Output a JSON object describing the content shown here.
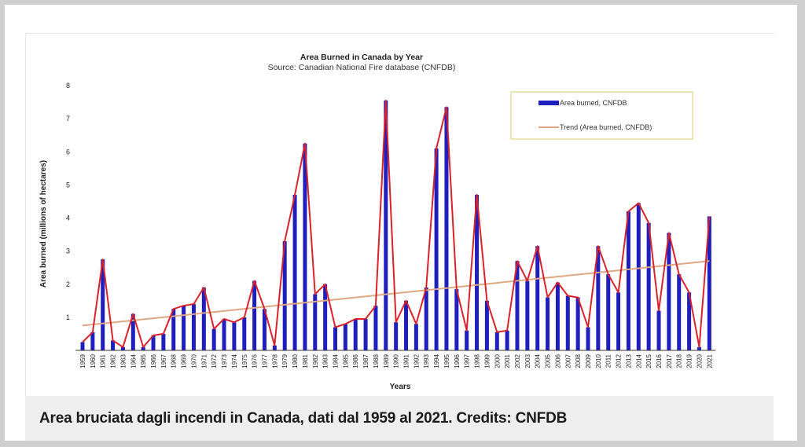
{
  "caption": "Area bruciata dagli incendi in Canada, dati dal 1959 al 2021. Credits: CNFDB",
  "chart_data": {
    "type": "bar",
    "title": "Area Burned in Canada by Year",
    "subtitle": "Source: Canadian National Fire database (CNFDB)",
    "xlabel": "Years",
    "ylabel": "Area burned (millions of hectares)",
    "ylim": [
      0,
      8
    ],
    "yticks": [
      1,
      2,
      3,
      4,
      5,
      6,
      7,
      8
    ],
    "grid": false,
    "legend_position": "top-right",
    "categories": [
      "1959",
      "1960",
      "1961",
      "1962",
      "1963",
      "1964",
      "1965",
      "1966",
      "1967",
      "1968",
      "1969",
      "1970",
      "1971",
      "1972",
      "1973",
      "1974",
      "1975",
      "1976",
      "1977",
      "1978",
      "1979",
      "1980",
      "1981",
      "1982",
      "1983",
      "1984",
      "1985",
      "1986",
      "1987",
      "1988",
      "1989",
      "1990",
      "1991",
      "1992",
      "1993",
      "1994",
      "1995",
      "1996",
      "1997",
      "1998",
      "1999",
      "2000",
      "2001",
      "2002",
      "2003",
      "2004",
      "2005",
      "2006",
      "2007",
      "2008",
      "2009",
      "2010",
      "2011",
      "2012",
      "2013",
      "2014",
      "2015",
      "2016",
      "2017",
      "2018",
      "2019",
      "2020",
      "2021"
    ],
    "series": [
      {
        "name": "Area burned, CNFDB",
        "type": "bar",
        "color": "#1f1fbf",
        "values": [
          0.25,
          0.55,
          2.75,
          0.3,
          0.1,
          1.1,
          0.1,
          0.45,
          0.5,
          1.25,
          1.35,
          1.4,
          1.9,
          0.65,
          0.95,
          0.85,
          1.0,
          2.1,
          1.25,
          0.15,
          3.3,
          4.7,
          6.25,
          1.7,
          2.0,
          0.7,
          0.8,
          0.95,
          0.95,
          1.35,
          7.55,
          0.85,
          1.5,
          0.8,
          1.9,
          6.1,
          7.35,
          1.85,
          0.6,
          4.7,
          1.5,
          0.55,
          0.6,
          2.7,
          2.1,
          3.15,
          1.6,
          2.05,
          1.65,
          1.6,
          0.7,
          3.15,
          2.3,
          1.75,
          4.2,
          4.45,
          3.85,
          1.2,
          3.55,
          2.3,
          1.75,
          0.1,
          4.05
        ]
      },
      {
        "name": "",
        "type": "line",
        "color": "#d9232b",
        "values": [
          0.25,
          0.55,
          2.75,
          0.3,
          0.1,
          1.1,
          0.1,
          0.45,
          0.5,
          1.25,
          1.35,
          1.4,
          1.9,
          0.65,
          0.95,
          0.85,
          1.0,
          2.1,
          1.25,
          0.15,
          3.3,
          4.7,
          6.25,
          1.7,
          2.0,
          0.7,
          0.8,
          0.95,
          0.95,
          1.35,
          7.55,
          0.85,
          1.5,
          0.8,
          1.9,
          6.1,
          7.35,
          1.85,
          0.6,
          4.7,
          1.5,
          0.55,
          0.6,
          2.7,
          2.1,
          3.15,
          1.6,
          2.05,
          1.65,
          1.6,
          0.7,
          3.15,
          2.3,
          1.75,
          4.2,
          4.45,
          3.85,
          1.2,
          3.55,
          2.3,
          1.75,
          0.1,
          4.05
        ]
      },
      {
        "name": "Trend (Area burned, CNFDB)",
        "type": "trend",
        "color": "#e0a882",
        "start": 0.75,
        "end": 2.7
      }
    ]
  },
  "colors": {
    "axis": "#333333",
    "legend_border": "#e8dca0"
  }
}
